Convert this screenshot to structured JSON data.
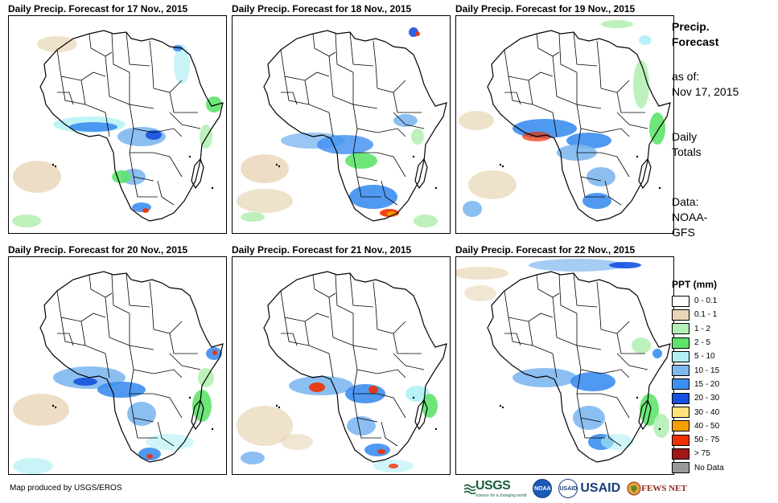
{
  "panels": [
    {
      "title": "Daily Precip. Forecast for 17 Nov., 2015"
    },
    {
      "title": "Daily Precip. Forecast for 18 Nov., 2015"
    },
    {
      "title": "Daily Precip. Forecast for 19 Nov., 2015"
    },
    {
      "title": "Daily Precip. Forecast for 20 Nov., 2015"
    },
    {
      "title": "Daily Precip. Forecast for 21 Nov., 2015"
    },
    {
      "title": "Daily Precip. Forecast for 22 Nov., 2015"
    }
  ],
  "info": {
    "title_line1": "Precip.",
    "title_line2": "Forecast",
    "asof_label": "as of:",
    "asof_date": "Nov 17, 2015",
    "totals_line1": "Daily",
    "totals_line2": "Totals",
    "data_line1": "Data:",
    "data_line2": "NOAA-",
    "data_line3": "GFS"
  },
  "legend": {
    "title": "PPT (mm)",
    "items": [
      {
        "label": "0 - 0.1",
        "color": "#ffffff"
      },
      {
        "label": "0.1 - 1",
        "color": "#e8d5b5"
      },
      {
        "label": "1 - 2",
        "color": "#b5f0b5"
      },
      {
        "label": "2 - 5",
        "color": "#5ee36b"
      },
      {
        "label": "5 - 10",
        "color": "#b0f0f5"
      },
      {
        "label": "10 - 15",
        "color": "#7fb8f0"
      },
      {
        "label": "15 - 20",
        "color": "#3d8ef0"
      },
      {
        "label": "20 - 30",
        "color": "#1550e0"
      },
      {
        "label": "30 - 40",
        "color": "#ffe27a"
      },
      {
        "label": "40 - 50",
        "color": "#f5a000"
      },
      {
        "label": "50 - 75",
        "color": "#f03000"
      },
      {
        "label": "> 75",
        "color": "#a01818"
      },
      {
        "label": "No Data",
        "color": "#999999"
      }
    ]
  },
  "credit": "Map produced by USGS/EROS",
  "logos": {
    "usgs": "USGS",
    "usgs_tagline": "science for a changing world",
    "noaa": "NOAA",
    "usaid_seal": "USAID",
    "usaid": "USAID",
    "fews": "FEWS NET"
  }
}
